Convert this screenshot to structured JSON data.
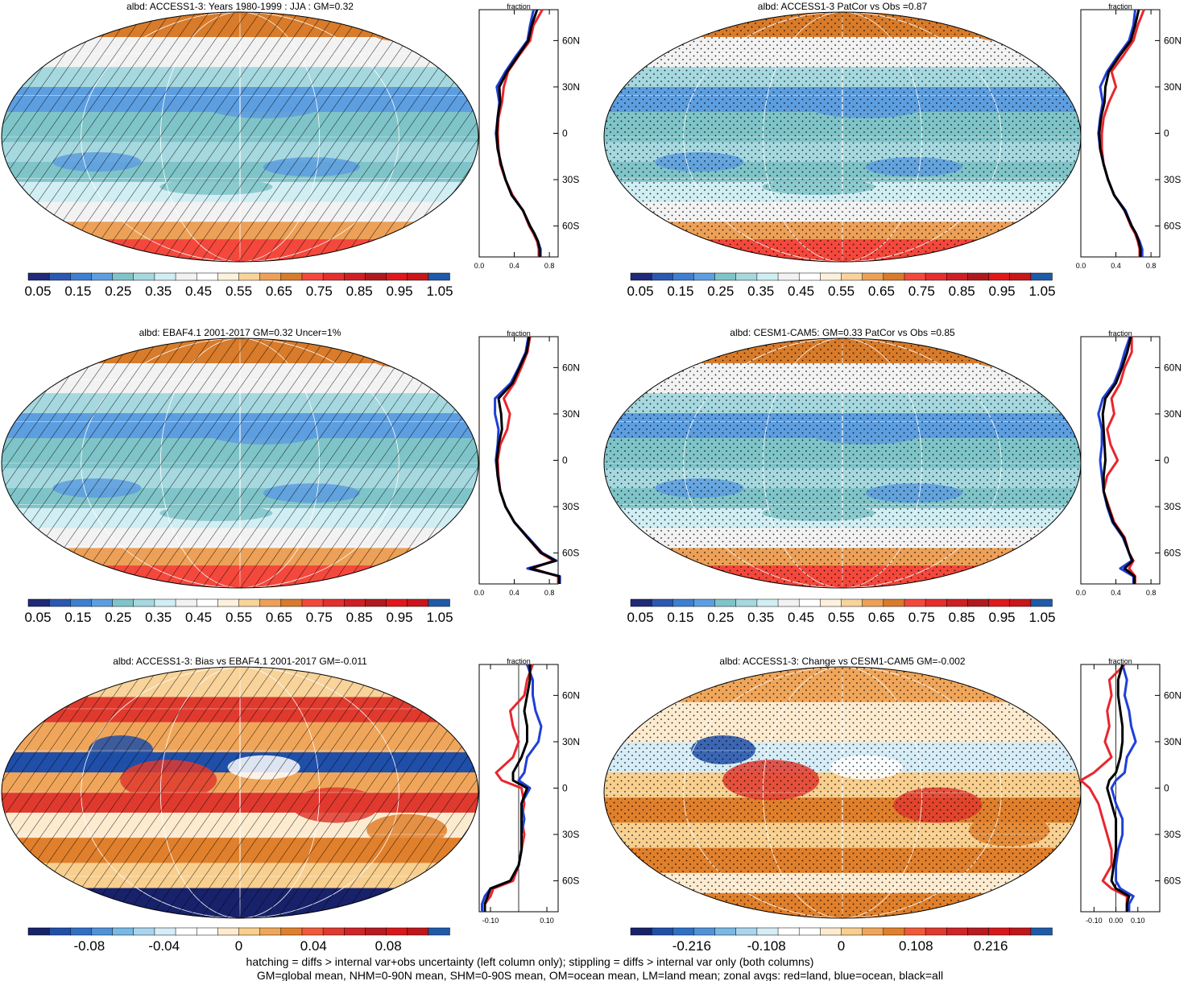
{
  "footer": {
    "line1": "hatching = diffs > internal var+obs uncertainty (left column only); stippling = diffs > internal var only (both columns)",
    "line2": "GM=global mean, NHM=0-90N mean, SHM=0-90S mean, OM=ocean mean, LM=land mean; zonal avgs: red=land, blue=ocean, black=all"
  },
  "colors": {
    "land": "#e8262d",
    "ocean": "#1f3fd6",
    "all": "#000000"
  },
  "chart_data": [
    {
      "type": "heatmap",
      "title": "albd: ACCESS1-3: Years 1980-1999 : JJA : GM=0.32",
      "overlay": "hatching",
      "colorbar": {
        "labels": [
          "0.05",
          "0.15",
          "0.25",
          "0.35",
          "0.45",
          "0.55",
          "0.65",
          "0.75",
          "0.85",
          "0.95",
          "1.05"
        ],
        "palette": "abs"
      },
      "profile": {
        "title": "fraction",
        "xticks": [
          "0.0",
          "0.4",
          "0.8"
        ],
        "xlim": [
          0,
          0.9
        ],
        "yticks": [
          "60N",
          "30N",
          "0",
          "30S",
          "60S"
        ],
        "lat": [
          80,
          70,
          60,
          50,
          40,
          30,
          20,
          10,
          0,
          -10,
          -20,
          -30,
          -40,
          -50,
          -60,
          -65,
          -70,
          -75,
          -80
        ],
        "land": [
          0.72,
          0.62,
          0.58,
          0.45,
          0.33,
          0.28,
          0.26,
          0.22,
          0.21,
          0.22,
          0.24,
          0.3,
          0.38,
          0.5,
          0.57,
          0.62,
          0.66,
          0.68,
          0.68
        ],
        "ocean": [
          0.62,
          0.58,
          0.55,
          0.42,
          0.3,
          0.2,
          0.23,
          0.21,
          0.19,
          0.21,
          0.25,
          0.3,
          0.37,
          0.5,
          0.58,
          0.63,
          0.67,
          0.7,
          0.7
        ],
        "all": [
          0.66,
          0.6,
          0.56,
          0.44,
          0.32,
          0.23,
          0.24,
          0.21,
          0.2,
          0.21,
          0.25,
          0.3,
          0.37,
          0.5,
          0.58,
          0.63,
          0.67,
          0.69,
          0.69
        ]
      }
    },
    {
      "type": "heatmap",
      "title": "albd: ACCESS1-3 PatCor vs Obs =0.87",
      "overlay": "stippling",
      "colorbar": {
        "labels": [
          "0.05",
          "0.15",
          "0.25",
          "0.35",
          "0.45",
          "0.55",
          "0.65",
          "0.75",
          "0.85",
          "0.95",
          "1.05"
        ],
        "palette": "abs"
      },
      "profile": {
        "title": "fraction",
        "xticks": [
          "0.0",
          "0.4",
          "0.8"
        ],
        "xlim": [
          0,
          0.9
        ],
        "yticks": [
          "60N",
          "30N",
          "0",
          "30S",
          "60S"
        ],
        "lat": [
          80,
          70,
          60,
          50,
          40,
          30,
          20,
          10,
          0,
          -10,
          -20,
          -30,
          -40,
          -50,
          -60,
          -65,
          -70,
          -75,
          -80
        ],
        "land": [
          0.72,
          0.65,
          0.6,
          0.48,
          0.35,
          0.4,
          0.32,
          0.26,
          0.24,
          0.24,
          0.26,
          0.31,
          0.38,
          0.5,
          0.57,
          0.62,
          0.65,
          0.67,
          0.67
        ],
        "ocean": [
          0.62,
          0.6,
          0.55,
          0.42,
          0.3,
          0.22,
          0.25,
          0.22,
          0.2,
          0.22,
          0.26,
          0.31,
          0.38,
          0.51,
          0.58,
          0.63,
          0.67,
          0.7,
          0.7
        ],
        "all": [
          0.66,
          0.62,
          0.57,
          0.44,
          0.32,
          0.28,
          0.27,
          0.23,
          0.21,
          0.22,
          0.26,
          0.31,
          0.38,
          0.5,
          0.58,
          0.63,
          0.66,
          0.68,
          0.68
        ]
      }
    },
    {
      "type": "heatmap",
      "title": "albd: EBAF4.1 2001-2017 GM=0.32 Uncer=1%",
      "overlay": "hatching",
      "colorbar": {
        "labels": [
          "0.05",
          "0.15",
          "0.25",
          "0.35",
          "0.45",
          "0.55",
          "0.65",
          "0.75",
          "0.85",
          "0.95",
          "1.05"
        ],
        "palette": "abs"
      },
      "profile": {
        "title": "fraction",
        "xticks": [
          "0.0",
          "0.4",
          "0.8"
        ],
        "xlim": [
          0,
          0.9
        ],
        "yticks": [
          "60N",
          "30N",
          "0",
          "30S",
          "60S"
        ],
        "lat": [
          80,
          70,
          60,
          50,
          40,
          30,
          20,
          10,
          0,
          -10,
          -20,
          -30,
          -40,
          -50,
          -60,
          -65,
          -70,
          -75,
          -80
        ],
        "land": [
          0.58,
          0.55,
          0.48,
          0.4,
          0.28,
          0.35,
          0.32,
          0.24,
          0.21,
          0.22,
          0.24,
          0.3,
          0.4,
          0.55,
          0.7,
          0.85,
          0.6,
          0.9,
          0.9
        ],
        "ocean": [
          0.56,
          0.53,
          0.45,
          0.36,
          0.18,
          0.18,
          0.22,
          0.21,
          0.19,
          0.21,
          0.24,
          0.3,
          0.4,
          0.56,
          0.72,
          0.88,
          0.55,
          0.92,
          0.92
        ],
        "all": [
          0.57,
          0.54,
          0.46,
          0.38,
          0.22,
          0.25,
          0.26,
          0.22,
          0.2,
          0.21,
          0.24,
          0.3,
          0.4,
          0.55,
          0.71,
          0.87,
          0.58,
          0.91,
          0.91
        ]
      }
    },
    {
      "type": "heatmap",
      "title": "albd: CESM1-CAM5: GM=0.33 PatCor vs Obs =0.85",
      "overlay": "stippling",
      "colorbar": {
        "labels": [
          "0.05",
          "0.15",
          "0.25",
          "0.35",
          "0.45",
          "0.55",
          "0.65",
          "0.75",
          "0.85",
          "0.95",
          "1.05"
        ],
        "palette": "abs"
      },
      "profile": {
        "title": "fraction",
        "xticks": [
          "0.0",
          "0.4",
          "0.8"
        ],
        "xlim": [
          0,
          0.9
        ],
        "yticks": [
          "60N",
          "30N",
          "0",
          "30S",
          "60S"
        ],
        "lat": [
          80,
          70,
          60,
          50,
          40,
          30,
          20,
          10,
          0,
          -10,
          -20,
          -30,
          -40,
          -50,
          -60,
          -65,
          -70,
          -75,
          -80
        ],
        "land": [
          0.58,
          0.58,
          0.5,
          0.45,
          0.35,
          0.38,
          0.3,
          0.34,
          0.42,
          0.3,
          0.26,
          0.32,
          0.38,
          0.5,
          0.55,
          0.6,
          0.55,
          0.62,
          0.62
        ],
        "ocean": [
          0.56,
          0.5,
          0.45,
          0.38,
          0.25,
          0.2,
          0.24,
          0.24,
          0.22,
          0.24,
          0.26,
          0.3,
          0.36,
          0.48,
          0.55,
          0.58,
          0.45,
          0.6,
          0.6
        ],
        "all": [
          0.57,
          0.53,
          0.47,
          0.4,
          0.28,
          0.25,
          0.26,
          0.27,
          0.28,
          0.26,
          0.26,
          0.31,
          0.37,
          0.49,
          0.55,
          0.59,
          0.5,
          0.61,
          0.61
        ]
      }
    },
    {
      "type": "heatmap",
      "title": "albd: ACCESS1-3: Bias vs EBAF4.1 2001-2017 GM=-0.011",
      "overlay": "hatching",
      "colorbar": {
        "labels": [
          "-0.08",
          "-0.04",
          "0",
          "0.04",
          "0.08"
        ],
        "palette": "diff"
      },
      "profile": {
        "title": "fraction",
        "xticks": [
          "-0.10",
          "0.10"
        ],
        "xlim": [
          -0.14,
          0.14
        ],
        "yticks": [
          "60N",
          "30N",
          "0",
          "30S",
          "60S"
        ],
        "lat": [
          80,
          70,
          60,
          50,
          40,
          30,
          20,
          10,
          5,
          0,
          -10,
          -20,
          -30,
          -40,
          -50,
          -60,
          -65,
          -70,
          -75,
          -80
        ],
        "land": [
          0.05,
          0.03,
          0.02,
          -0.03,
          -0.02,
          0.0,
          -0.02,
          -0.08,
          -0.06,
          0.01,
          0.02,
          0.01,
          0.02,
          0.01,
          0.0,
          -0.02,
          -0.09,
          -0.1,
          -0.12,
          -0.12
        ],
        "ocean": [
          0.03,
          0.05,
          0.05,
          0.06,
          0.08,
          0.07,
          0.03,
          0.02,
          0.0,
          0.04,
          0.01,
          0.02,
          0.01,
          0.01,
          0.0,
          -0.03,
          -0.1,
          -0.12,
          -0.13,
          -0.13
        ],
        "all": [
          0.04,
          0.04,
          0.03,
          0.02,
          0.03,
          0.03,
          0.01,
          -0.02,
          -0.02,
          0.03,
          0.01,
          0.01,
          0.01,
          0.01,
          0.0,
          -0.03,
          -0.1,
          -0.11,
          -0.12,
          -0.12
        ]
      }
    },
    {
      "type": "heatmap",
      "title": "albd: ACCESS1-3: Change vs CESM1-CAM5 GM=-0.002",
      "overlay": "stippling",
      "colorbar": {
        "labels": [
          "-0.216",
          "-0.108",
          "0",
          "0.108",
          "0.216"
        ],
        "palette": "diff"
      },
      "profile": {
        "title": "fraction",
        "xticks": [
          "-0.10",
          "0.00",
          "0.10"
        ],
        "xlim": [
          -0.16,
          0.2
        ],
        "yticks": [
          "60N",
          "30N",
          "0",
          "30S",
          "60S"
        ],
        "lat": [
          80,
          70,
          60,
          50,
          40,
          30,
          20,
          10,
          5,
          0,
          -10,
          -20,
          -30,
          -40,
          -50,
          -60,
          -65,
          -70,
          -75,
          -80
        ],
        "land": [
          0.04,
          -0.03,
          -0.02,
          -0.04,
          -0.03,
          -0.05,
          -0.02,
          -0.1,
          -0.16,
          -0.12,
          -0.08,
          -0.06,
          -0.04,
          -0.02,
          -0.02,
          -0.06,
          -0.02,
          0.05,
          0.05,
          0.05
        ],
        "ocean": [
          0.03,
          0.05,
          0.04,
          0.06,
          0.07,
          0.09,
          0.05,
          0.04,
          0.0,
          -0.02,
          0.0,
          0.03,
          0.03,
          0.01,
          0.0,
          0.0,
          0.02,
          0.08,
          0.06,
          0.06
        ],
        "all": [
          0.03,
          0.01,
          0.01,
          0.02,
          0.03,
          0.03,
          0.02,
          0.0,
          -0.03,
          -0.04,
          -0.02,
          0.0,
          0.0,
          0.0,
          -0.01,
          -0.02,
          0.0,
          0.06,
          0.05,
          0.05
        ]
      }
    }
  ]
}
